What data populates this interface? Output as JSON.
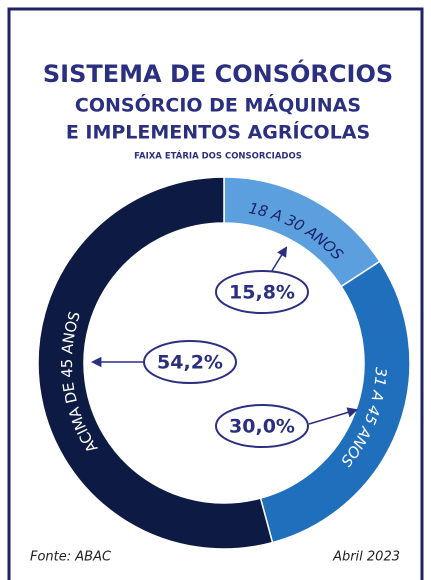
{
  "chart_data": {
    "type": "donut",
    "title": "SISTEMA DE CONSÓRCIOS",
    "subtitle": [
      "CONSÓRCIO DE MÁQUINAS",
      "E IMPLEMENTOS AGRÍCOLAS"
    ],
    "caption": "FAIXA ETÁRIA DOS CONSORCIADOS",
    "categories": [
      "18 A 30 ANOS",
      "31 A 45 ANOS",
      "ACIMA DE 45 ANOS"
    ],
    "values": [
      15.8,
      30.0,
      54.2
    ],
    "value_labels": [
      "15,8%",
      "30,0%",
      "54,2%"
    ],
    "colors": [
      "#5b9fdf",
      "#1f6fbd",
      "#0c1a44"
    ],
    "source": "Fonte: ABAC",
    "date": "Abril 2023"
  }
}
